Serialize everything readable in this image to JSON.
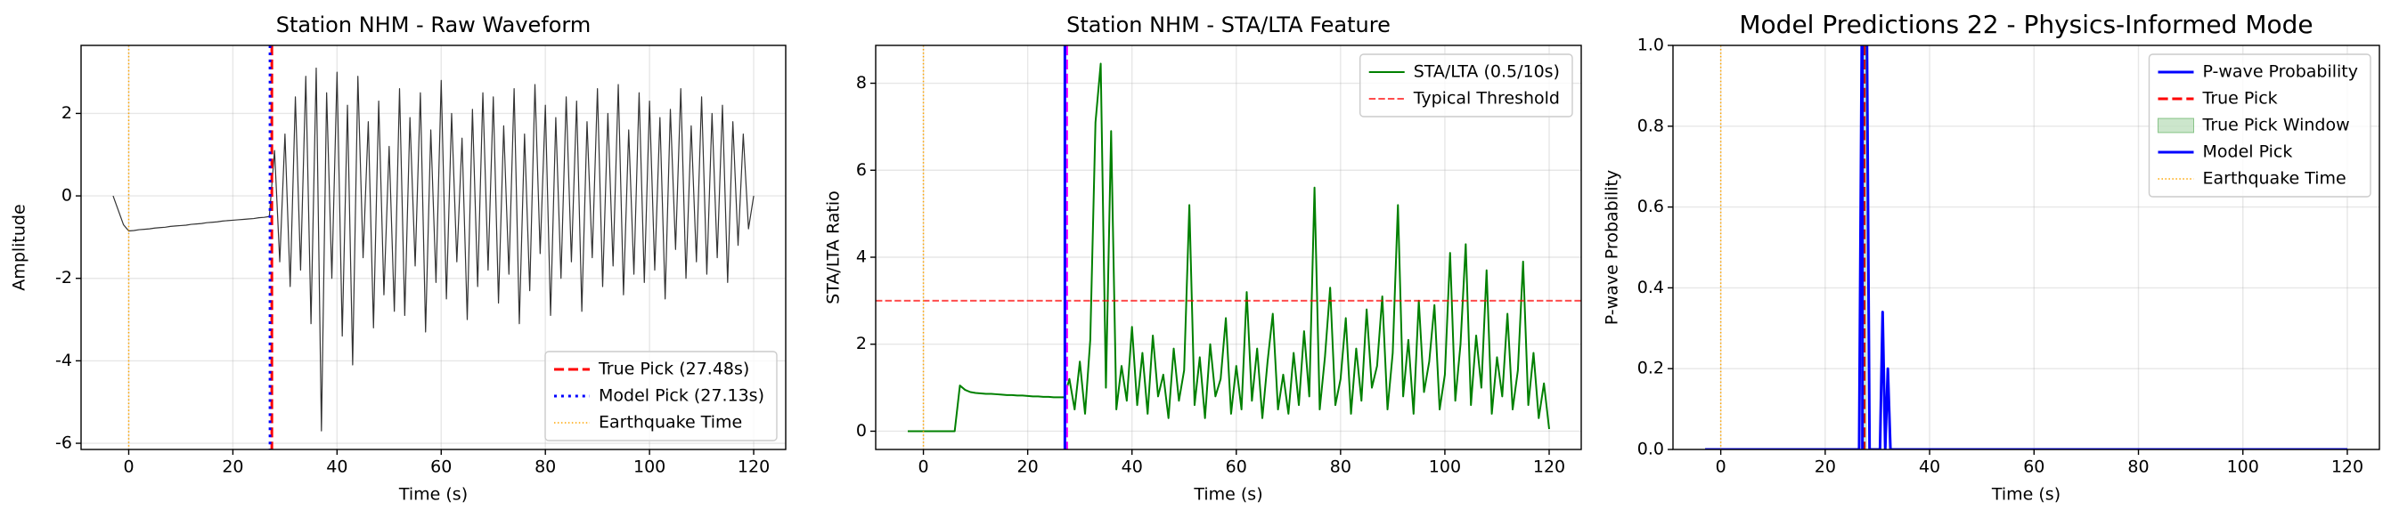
{
  "chart_data": [
    {
      "type": "line",
      "title": "Station NHM - Raw Waveform",
      "xlabel": "Time (s)",
      "ylabel": "Amplitude",
      "grid": true,
      "legend": "lower right",
      "xlim": [
        -9.15,
        126.15
      ],
      "xticks": [
        0,
        20,
        40,
        60,
        80,
        100,
        120
      ],
      "ylim": [
        -6.15,
        3.65
      ],
      "yticks": [
        -6,
        -4,
        -2,
        0,
        2
      ],
      "x": [
        -3,
        -2,
        -1,
        0,
        1,
        2,
        3,
        4,
        5,
        6,
        7,
        8,
        9,
        10,
        11,
        12,
        13,
        14,
        15,
        16,
        17,
        18,
        19,
        20,
        21,
        22,
        23,
        24,
        25,
        26,
        27,
        28,
        29,
        30,
        31,
        32,
        33,
        34,
        35,
        36,
        37,
        38,
        39,
        40,
        41,
        42,
        43,
        44,
        45,
        46,
        47,
        48,
        49,
        50,
        51,
        52,
        53,
        54,
        55,
        56,
        57,
        58,
        59,
        60,
        61,
        62,
        63,
        64,
        65,
        66,
        67,
        68,
        69,
        70,
        71,
        72,
        73,
        74,
        75,
        76,
        77,
        78,
        79,
        80,
        81,
        82,
        83,
        84,
        85,
        86,
        87,
        88,
        89,
        90,
        91,
        92,
        93,
        94,
        95,
        96,
        97,
        98,
        99,
        100,
        101,
        102,
        103,
        104,
        105,
        106,
        107,
        108,
        109,
        110,
        111,
        112,
        113,
        114,
        115,
        116,
        117,
        118,
        119,
        120
      ],
      "series": [
        {
          "kind": "line",
          "color": "#333333",
          "width": 1.2,
          "style": "solid",
          "values": [
            0,
            -0.35,
            -0.7,
            -0.85,
            -0.84,
            -0.82,
            -0.81,
            -0.8,
            -0.78,
            -0.77,
            -0.76,
            -0.74,
            -0.73,
            -0.72,
            -0.71,
            -0.69,
            -0.68,
            -0.67,
            -0.65,
            -0.64,
            -0.63,
            -0.61,
            -0.6,
            -0.59,
            -0.58,
            -0.57,
            -0.56,
            -0.55,
            -0.53,
            -0.52,
            -0.5,
            1.1,
            -1.6,
            1.5,
            -2.2,
            2.4,
            -1.8,
            2.9,
            -3.1,
            3.1,
            -5.7,
            2.5,
            -2.0,
            3.0,
            -3.4,
            2.2,
            -4.1,
            2.9,
            -1.5,
            1.8,
            -3.2,
            2.3,
            -2.4,
            1.2,
            -2.8,
            2.6,
            -2.9,
            1.9,
            -1.7,
            2.5,
            -3.3,
            1.6,
            -2.1,
            2.8,
            -2.5,
            2.0,
            -1.6,
            1.4,
            -3.0,
            2.1,
            -2.2,
            2.5,
            -1.8,
            2.4,
            -2.6,
            1.7,
            -1.9,
            2.6,
            -3.1,
            1.5,
            -2.3,
            2.7,
            -1.4,
            2.2,
            -2.9,
            1.9,
            -2.0,
            2.4,
            -1.6,
            2.3,
            -2.8,
            1.8,
            -1.5,
            2.6,
            -2.2,
            2.0,
            -1.7,
            2.7,
            -2.4,
            1.6,
            -1.9,
            2.5,
            -2.1,
            2.3,
            -1.8,
            1.9,
            -2.5,
            2.1,
            -1.3,
            2.6,
            -2.0,
            1.7,
            -1.6,
            2.4,
            -1.9,
            2.0,
            -1.5,
            2.2,
            -2.1,
            1.8,
            -1.2,
            1.5,
            -0.8,
            0
          ]
        },
        {
          "kind": "vline",
          "name": "True Pick (27.48s)",
          "x": 27.48,
          "color": "#ff0000",
          "width": 3,
          "style": "dashed"
        },
        {
          "kind": "vline",
          "name": "Model Pick (27.13s)",
          "x": 27.13,
          "color": "#0000ff",
          "width": 3,
          "style": "dotted"
        },
        {
          "kind": "vline",
          "name": "Earthquake Time",
          "x": 0,
          "color": "#ffa500",
          "width": 1.5,
          "style": "dotted"
        }
      ]
    },
    {
      "type": "line",
      "title": "Station NHM - STA/LTA Feature",
      "xlabel": "Time (s)",
      "ylabel": "STA/LTA Ratio",
      "grid": true,
      "legend": "upper right",
      "xlim": [
        -9.15,
        126.15
      ],
      "xticks": [
        0,
        20,
        40,
        60,
        80,
        100,
        120
      ],
      "ylim": [
        -0.42,
        8.87
      ],
      "yticks": [
        0,
        2,
        4,
        6,
        8
      ],
      "x": [
        -3,
        -2,
        -1,
        0,
        1,
        2,
        3,
        4,
        5,
        6,
        7,
        8,
        9,
        10,
        11,
        12,
        13,
        14,
        15,
        16,
        17,
        18,
        19,
        20,
        21,
        22,
        23,
        24,
        25,
        26,
        27,
        28,
        29,
        30,
        31,
        32,
        33,
        34,
        35,
        36,
        37,
        38,
        39,
        40,
        41,
        42,
        43,
        44,
        45,
        46,
        47,
        48,
        49,
        50,
        51,
        52,
        53,
        54,
        55,
        56,
        57,
        58,
        59,
        60,
        61,
        62,
        63,
        64,
        65,
        66,
        67,
        68,
        69,
        70,
        71,
        72,
        73,
        74,
        75,
        76,
        77,
        78,
        79,
        80,
        81,
        82,
        83,
        84,
        85,
        86,
        87,
        88,
        89,
        90,
        91,
        92,
        93,
        94,
        95,
        96,
        97,
        98,
        99,
        100,
        101,
        102,
        103,
        104,
        105,
        106,
        107,
        108,
        109,
        110,
        111,
        112,
        113,
        114,
        115,
        116,
        117,
        118,
        119,
        120
      ],
      "series": [
        {
          "kind": "line",
          "name": "STA/LTA (0.5/10s)",
          "color": "#008000",
          "width": 2,
          "style": "solid",
          "values": [
            0,
            0,
            0,
            0,
            0,
            0,
            0,
            0,
            0,
            0,
            1.05,
            0.95,
            0.9,
            0.88,
            0.87,
            0.86,
            0.86,
            0.85,
            0.84,
            0.83,
            0.83,
            0.82,
            0.82,
            0.81,
            0.8,
            0.8,
            0.79,
            0.79,
            0.78,
            0.78,
            0.78,
            1.2,
            0.5,
            1.6,
            0.4,
            2.1,
            7.1,
            8.45,
            1.0,
            6.9,
            0.5,
            1.5,
            0.7,
            2.4,
            0.6,
            1.8,
            0.4,
            2.2,
            0.8,
            1.3,
            0.3,
            1.9,
            0.7,
            1.4,
            5.2,
            0.6,
            1.7,
            0.3,
            2.0,
            0.8,
            1.2,
            2.6,
            0.4,
            1.5,
            0.5,
            3.2,
            0.7,
            1.9,
            0.3,
            1.6,
            2.7,
            0.5,
            1.3,
            0.4,
            1.8,
            0.6,
            2.3,
            0.8,
            5.6,
            0.5,
            1.7,
            3.3,
            0.6,
            1.2,
            2.6,
            0.4,
            1.9,
            0.7,
            2.8,
            1.0,
            1.5,
            3.1,
            0.5,
            1.8,
            5.2,
            0.8,
            2.1,
            0.4,
            3.0,
            0.9,
            1.6,
            2.9,
            0.5,
            1.3,
            4.1,
            0.7,
            2.0,
            4.3,
            0.6,
            2.2,
            1.0,
            3.7,
            0.4,
            1.7,
            0.8,
            2.7,
            0.5,
            1.4,
            3.9,
            0.6,
            1.8,
            0.3,
            1.1,
            0.05
          ]
        },
        {
          "kind": "hline",
          "name": "Typical Threshold",
          "y": 3,
          "color": "#ff0000",
          "alpha": 0.7,
          "width": 2,
          "style": "dashed"
        },
        {
          "kind": "vline",
          "x": 27.48,
          "color": "#ff00ff",
          "width": 3,
          "style": "dashed"
        },
        {
          "kind": "vline",
          "x": 27.13,
          "color": "#0000ff",
          "width": 3,
          "style": "solid"
        },
        {
          "kind": "vline",
          "x": 0,
          "color": "#ffa500",
          "width": 1.5,
          "style": "dotted"
        }
      ]
    },
    {
      "type": "line",
      "title": "Model Predictions 22 - Physics-Informed Mode",
      "xlabel": "Time (s)",
      "ylabel": "P-wave Probability",
      "grid": true,
      "legend": "upper right",
      "xlim": [
        -9.15,
        126.15
      ],
      "xticks": [
        0,
        20,
        40,
        60,
        80,
        100,
        120
      ],
      "ylim": [
        0,
        1
      ],
      "yticks": [
        {
          "value": 0,
          "label": "0.0"
        },
        0.2,
        0.4,
        0.6,
        0.8,
        {
          "value": 1,
          "label": "1.0"
        }
      ],
      "x": [
        -3,
        26.5,
        27,
        27.5,
        28,
        28.5,
        29,
        30.5,
        31,
        31.5,
        32,
        32.5,
        33,
        120
      ],
      "series": [
        {
          "kind": "line",
          "name": "P-wave Probability",
          "color": "#0000ff",
          "width": 3,
          "style": "solid",
          "values": [
            0,
            0,
            1,
            1,
            1,
            0,
            0,
            0,
            0.34,
            0,
            0.2,
            0,
            0,
            0
          ]
        },
        {
          "kind": "vline",
          "name": "True Pick",
          "x": 27.48,
          "color": "#ff0000",
          "width": 3,
          "style": "dashed"
        },
        {
          "kind": "span",
          "name": "True Pick Window",
          "span": [
            26.98,
            27.98
          ],
          "color": "#008000",
          "alpha": 0.2
        },
        {
          "kind": "vline",
          "name": "Model Pick",
          "x": 27.13,
          "color": "#0000ff",
          "width": 3,
          "style": "solid"
        },
        {
          "kind": "vline",
          "name": "Earthquake Time",
          "x": 0,
          "color": "#ffa500",
          "width": 1.5,
          "style": "dotted"
        }
      ]
    }
  ]
}
